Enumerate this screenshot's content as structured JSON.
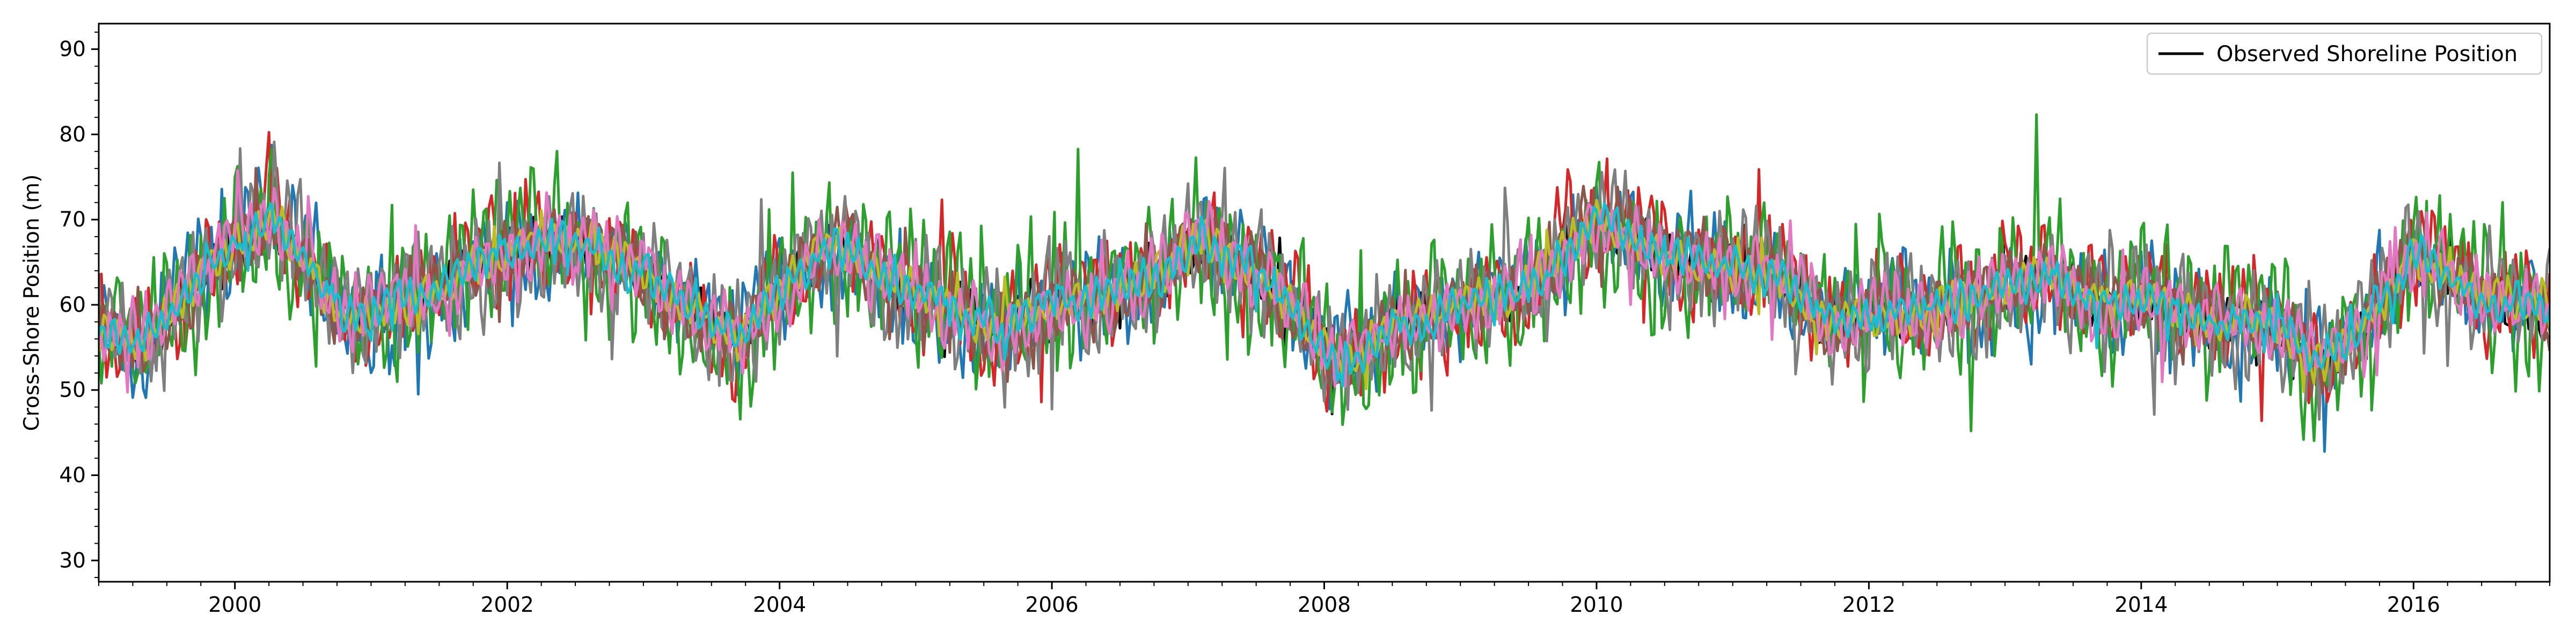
{
  "chart_data": {
    "type": "line",
    "title": "",
    "xlabel": "",
    "ylabel": "Cross-Shore Position (m)",
    "xlim": [
      1999.0,
      2017.0
    ],
    "ylim": [
      27.5,
      93
    ],
    "xticks": [
      2000,
      2002,
      2004,
      2006,
      2008,
      2010,
      2012,
      2014,
      2016
    ],
    "xtick_labels": [
      "2000",
      "2002",
      "2004",
      "2006",
      "2008",
      "2010",
      "2012",
      "2014",
      "2016"
    ],
    "yticks": [
      30,
      40,
      50,
      60,
      70,
      80,
      90
    ],
    "ytick_labels": [
      "30",
      "40",
      "50",
      "60",
      "70",
      "80",
      "90"
    ],
    "grid": false,
    "legend_position": "top-right",
    "legend": [
      {
        "label": "Observed Shoreline Position",
        "color": "#000000"
      }
    ],
    "series_base": {
      "x_start": 1999.0,
      "x_end": 2017.0,
      "anchors_x": [
        1999.0,
        1999.3,
        1999.7,
        2000.0,
        2000.3,
        2000.5,
        2000.8,
        2001.3,
        2002.0,
        2002.4,
        2002.8,
        2003.3,
        2003.7,
        2004.0,
        2004.4,
        2004.8,
        2005.2,
        2005.6,
        2006.0,
        2006.4,
        2006.8,
        2007.1,
        2007.5,
        2007.9,
        2008.1,
        2008.5,
        2009.0,
        2009.5,
        2010.0,
        2010.4,
        2010.9,
        2011.3,
        2011.7,
        2012.0,
        2012.5,
        2013.0,
        2013.3,
        2013.7,
        2014.0,
        2014.5,
        2015.0,
        2015.3,
        2015.6,
        2016.0,
        2016.5,
        2017.0
      ],
      "anchors_y": [
        57,
        55,
        62,
        68,
        70,
        66,
        58,
        61,
        66,
        68,
        66,
        60,
        56,
        62,
        67,
        63,
        60,
        57,
        60,
        61,
        64,
        68,
        64,
        57,
        53,
        57,
        60,
        62,
        70,
        66,
        64,
        64,
        58,
        58,
        60,
        62,
        64,
        60,
        61,
        58,
        58,
        53,
        57,
        66,
        61,
        60
      ]
    },
    "series": [
      {
        "color": "#000000",
        "amp": 4,
        "noise": 2.5,
        "phase": 0.0
      },
      {
        "color": "#1f77b4",
        "amp": 7,
        "noise": 5.5,
        "phase": 0.3
      },
      {
        "color": "#d62728",
        "amp": 7,
        "noise": 5.5,
        "phase": 0.6
      },
      {
        "color": "#2ca02c",
        "amp": 10,
        "noise": 7.0,
        "phase": 0.1
      },
      {
        "color": "#7f7f7f",
        "amp": 9,
        "noise": 5.0,
        "phase": 0.8
      },
      {
        "color": "#8c564b",
        "amp": 5,
        "noise": 3.0,
        "phase": 0.4
      },
      {
        "color": "#bcbd22",
        "amp": 3,
        "noise": 2.0,
        "phase": 0.2
      },
      {
        "color": "#e377c2",
        "amp": 5,
        "noise": 3.5,
        "phase": 0.9
      },
      {
        "color": "#17becf",
        "amp": 3,
        "noise": 2.0,
        "phase": 0.5
      }
    ]
  }
}
